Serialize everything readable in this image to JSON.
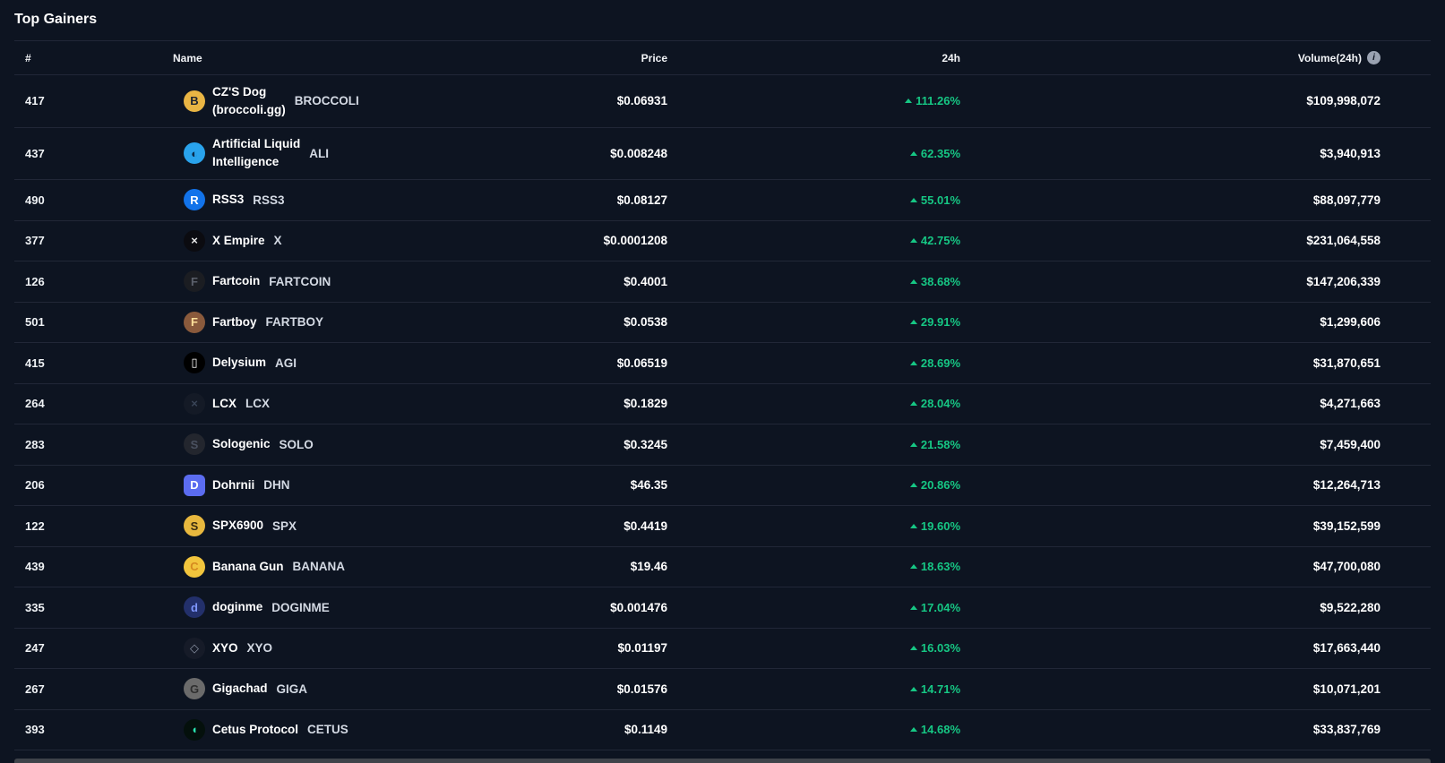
{
  "page": {
    "title": "Top Gainers"
  },
  "theme": {
    "background": "#0d1421",
    "positive": "#16c784",
    "separator": "#212737",
    "next_section_strip": "#3f434a"
  },
  "table": {
    "columns": {
      "rank": "#",
      "name": "Name",
      "price": "Price",
      "change": "24h",
      "volume": "Volume(24h)"
    },
    "volume_info_glyph": "i",
    "rows": [
      {
        "rank": "417",
        "name_lines": [
          "CZ'S Dog",
          "(broccoli.gg)"
        ],
        "symbol": "BROCCOLI",
        "price": "$0.06931",
        "change": "111.26%",
        "direction": "up",
        "volume": "$109,998,072",
        "icon": {
          "name": "broccoli-coin-icon",
          "bg": "#e9b544",
          "fg": "#1d2330",
          "glyph": "B",
          "shape": "circle"
        }
      },
      {
        "rank": "437",
        "name_lines": [
          "Artificial Liquid",
          "Intelligence"
        ],
        "symbol": "ALI",
        "price": "$0.008248",
        "change": "62.35%",
        "direction": "up",
        "volume": "$3,940,913",
        "icon": {
          "name": "ali-coin-icon",
          "bg": "#29a3ec",
          "fg": "#0a2a4a",
          "glyph": "◐",
          "shape": "circle"
        }
      },
      {
        "rank": "490",
        "name_lines": [
          "RSS3"
        ],
        "symbol": "RSS3",
        "price": "$0.08127",
        "change": "55.01%",
        "direction": "up",
        "volume": "$88,097,779",
        "icon": {
          "name": "rss3-coin-icon",
          "bg": "#1273ea",
          "fg": "#ffffff",
          "glyph": "R",
          "shape": "circle"
        }
      },
      {
        "rank": "377",
        "name_lines": [
          "X Empire"
        ],
        "symbol": "X",
        "price": "$0.0001208",
        "change": "42.75%",
        "direction": "up",
        "volume": "$231,064,558",
        "icon": {
          "name": "x-empire-coin-icon",
          "bg": "#0b0b10",
          "fg": "#e8e8e8",
          "glyph": "×",
          "shape": "circle"
        }
      },
      {
        "rank": "126",
        "name_lines": [
          "Fartcoin"
        ],
        "symbol": "FARTCOIN",
        "price": "$0.4001",
        "change": "38.68%",
        "direction": "up",
        "volume": "$147,206,339",
        "icon": {
          "name": "fartcoin-coin-icon",
          "bg": "#1b1d22",
          "fg": "#5a5f6a",
          "glyph": "F",
          "shape": "circle"
        }
      },
      {
        "rank": "501",
        "name_lines": [
          "Fartboy"
        ],
        "symbol": "FARTBOY",
        "price": "$0.0538",
        "change": "29.91%",
        "direction": "up",
        "volume": "$1,299,606",
        "icon": {
          "name": "fartboy-coin-icon",
          "bg": "#8a5a3c",
          "fg": "#ffe09a",
          "glyph": "F",
          "shape": "circle"
        }
      },
      {
        "rank": "415",
        "name_lines": [
          "Delysium"
        ],
        "symbol": "AGI",
        "price": "$0.06519",
        "change": "28.69%",
        "direction": "up",
        "volume": "$31,870,651",
        "icon": {
          "name": "delysium-coin-icon",
          "bg": "#000000",
          "fg": "#ffffff",
          "glyph": "▯",
          "shape": "circle"
        }
      },
      {
        "rank": "264",
        "name_lines": [
          "LCX"
        ],
        "symbol": "LCX",
        "price": "$0.1829",
        "change": "28.04%",
        "direction": "up",
        "volume": "$4,271,663",
        "icon": {
          "name": "lcx-coin-icon",
          "bg": "#141a26",
          "fg": "#3a4558",
          "glyph": "×",
          "shape": "circle"
        }
      },
      {
        "rank": "283",
        "name_lines": [
          "Sologenic"
        ],
        "symbol": "SOLO",
        "price": "$0.3245",
        "change": "21.58%",
        "direction": "up",
        "volume": "$7,459,400",
        "icon": {
          "name": "sologenic-coin-icon",
          "bg": "#23262e",
          "fg": "#4a5160",
          "glyph": "S",
          "shape": "circle"
        }
      },
      {
        "rank": "206",
        "name_lines": [
          "Dohrnii"
        ],
        "symbol": "DHN",
        "price": "$46.35",
        "change": "20.86%",
        "direction": "up",
        "volume": "$12,264,713",
        "icon": {
          "name": "dohrnii-coin-icon",
          "bg": "#5b6cf0",
          "fg": "#ffffff",
          "glyph": "D",
          "shape": "rounded"
        }
      },
      {
        "rank": "122",
        "name_lines": [
          "SPX6900"
        ],
        "symbol": "SPX",
        "price": "$0.4419",
        "change": "19.60%",
        "direction": "up",
        "volume": "$39,152,599",
        "icon": {
          "name": "spx6900-coin-icon",
          "bg": "#e8b83e",
          "fg": "#3a2c10",
          "glyph": "S",
          "shape": "circle"
        }
      },
      {
        "rank": "439",
        "name_lines": [
          "Banana Gun"
        ],
        "symbol": "BANANA",
        "price": "$19.46",
        "change": "18.63%",
        "direction": "up",
        "volume": "$47,700,080",
        "icon": {
          "name": "banana-gun-coin-icon",
          "bg": "#f2c53d",
          "fg": "#d58a20",
          "glyph": "C",
          "shape": "circle"
        }
      },
      {
        "rank": "335",
        "name_lines": [
          "doginme"
        ],
        "symbol": "DOGINME",
        "price": "$0.001476",
        "change": "17.04%",
        "direction": "up",
        "volume": "$9,522,280",
        "icon": {
          "name": "doginme-coin-icon",
          "bg": "#23306b",
          "fg": "#7f97ff",
          "glyph": "d",
          "shape": "circle"
        }
      },
      {
        "rank": "247",
        "name_lines": [
          "XYO"
        ],
        "symbol": "XYO",
        "price": "$0.01197",
        "change": "16.03%",
        "direction": "up",
        "volume": "$17,663,440",
        "icon": {
          "name": "xyo-coin-icon",
          "bg": "#161b28",
          "fg": "#8890a2",
          "glyph": "◇",
          "shape": "circle"
        }
      },
      {
        "rank": "267",
        "name_lines": [
          "Gigachad"
        ],
        "symbol": "GIGA",
        "price": "$0.01576",
        "change": "14.71%",
        "direction": "up",
        "volume": "$10,071,201",
        "icon": {
          "name": "gigachad-coin-icon",
          "bg": "#6b6b6b",
          "fg": "#2f2f2f",
          "glyph": "G",
          "shape": "circle"
        }
      },
      {
        "rank": "393",
        "name_lines": [
          "Cetus Protocol"
        ],
        "symbol": "CETUS",
        "price": "$0.1149",
        "change": "14.68%",
        "direction": "up",
        "volume": "$33,837,769",
        "icon": {
          "name": "cetus-coin-icon",
          "bg": "#04100c",
          "fg": "#29e5b1",
          "glyph": "◖",
          "shape": "circle"
        }
      }
    ]
  }
}
